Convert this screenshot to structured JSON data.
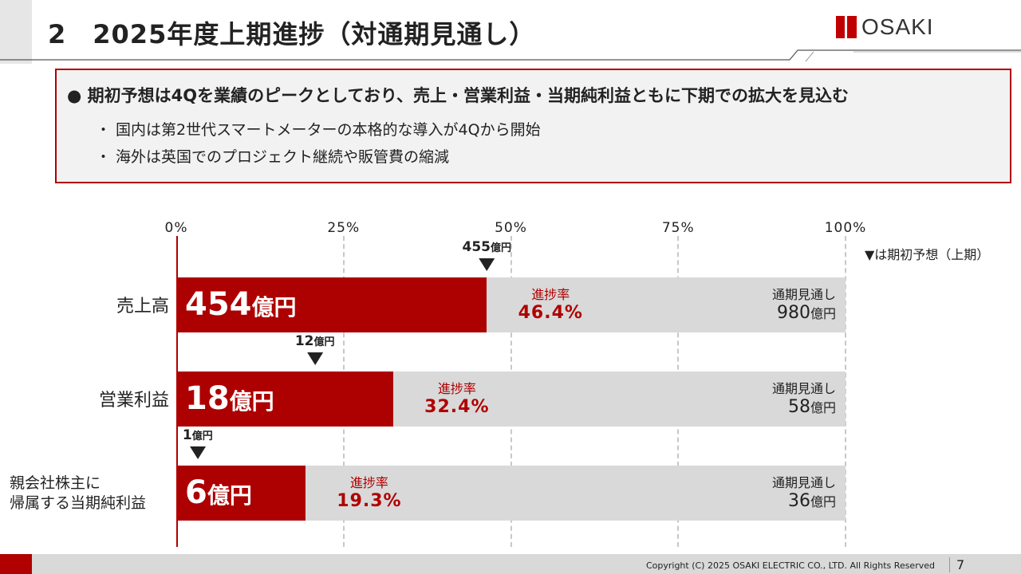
{
  "header": {
    "title": "2　2025年度上期進捗（対通期見通し）",
    "logo_text": "OSAKI"
  },
  "summary": {
    "headline": "● 期初予想は4Qを業績のピークとしており、売上・営業利益・当期純利益ともに下期での拡大を見込む",
    "bullets": [
      "・ 国内は第2世代スマートメーターの本格的な導入が4Qから開始",
      "・ 海外は英国でのプロジェクト継続や販管費の縮減"
    ]
  },
  "chart_data": {
    "type": "bar",
    "orientation": "horizontal",
    "xlim": [
      0,
      100
    ],
    "ticks": [
      "0%",
      "25%",
      "50%",
      "75%",
      "100%"
    ],
    "legend": "▼は期初予想（上期）",
    "rate_label": "進捗率",
    "full_label": "通期見通し",
    "unit": "億円",
    "series": [
      {
        "category": "売上高",
        "actual": "454",
        "rate": 46.4,
        "rate_text": "46.4%",
        "full": "980",
        "forecast": "455",
        "forecast_pct": 46.4
      },
      {
        "category": "営業利益",
        "actual": "18",
        "rate": 32.4,
        "rate_text": "32.4%",
        "full": "58",
        "forecast": "12",
        "forecast_pct": 20.7
      },
      {
        "category": "親会社株主に\n帰属する当期純利益",
        "actual": "6",
        "rate": 19.3,
        "rate_text": "19.3%",
        "full": "36",
        "forecast": "1",
        "forecast_pct": 3.2
      }
    ]
  },
  "colors": {
    "accent": "#ad0000",
    "track": "#d9d9d9"
  },
  "footer": {
    "copyright": "Copyright (C) 2025 OSAKI ELECTRIC CO., LTD. All Rights Reserved",
    "page": "7"
  }
}
